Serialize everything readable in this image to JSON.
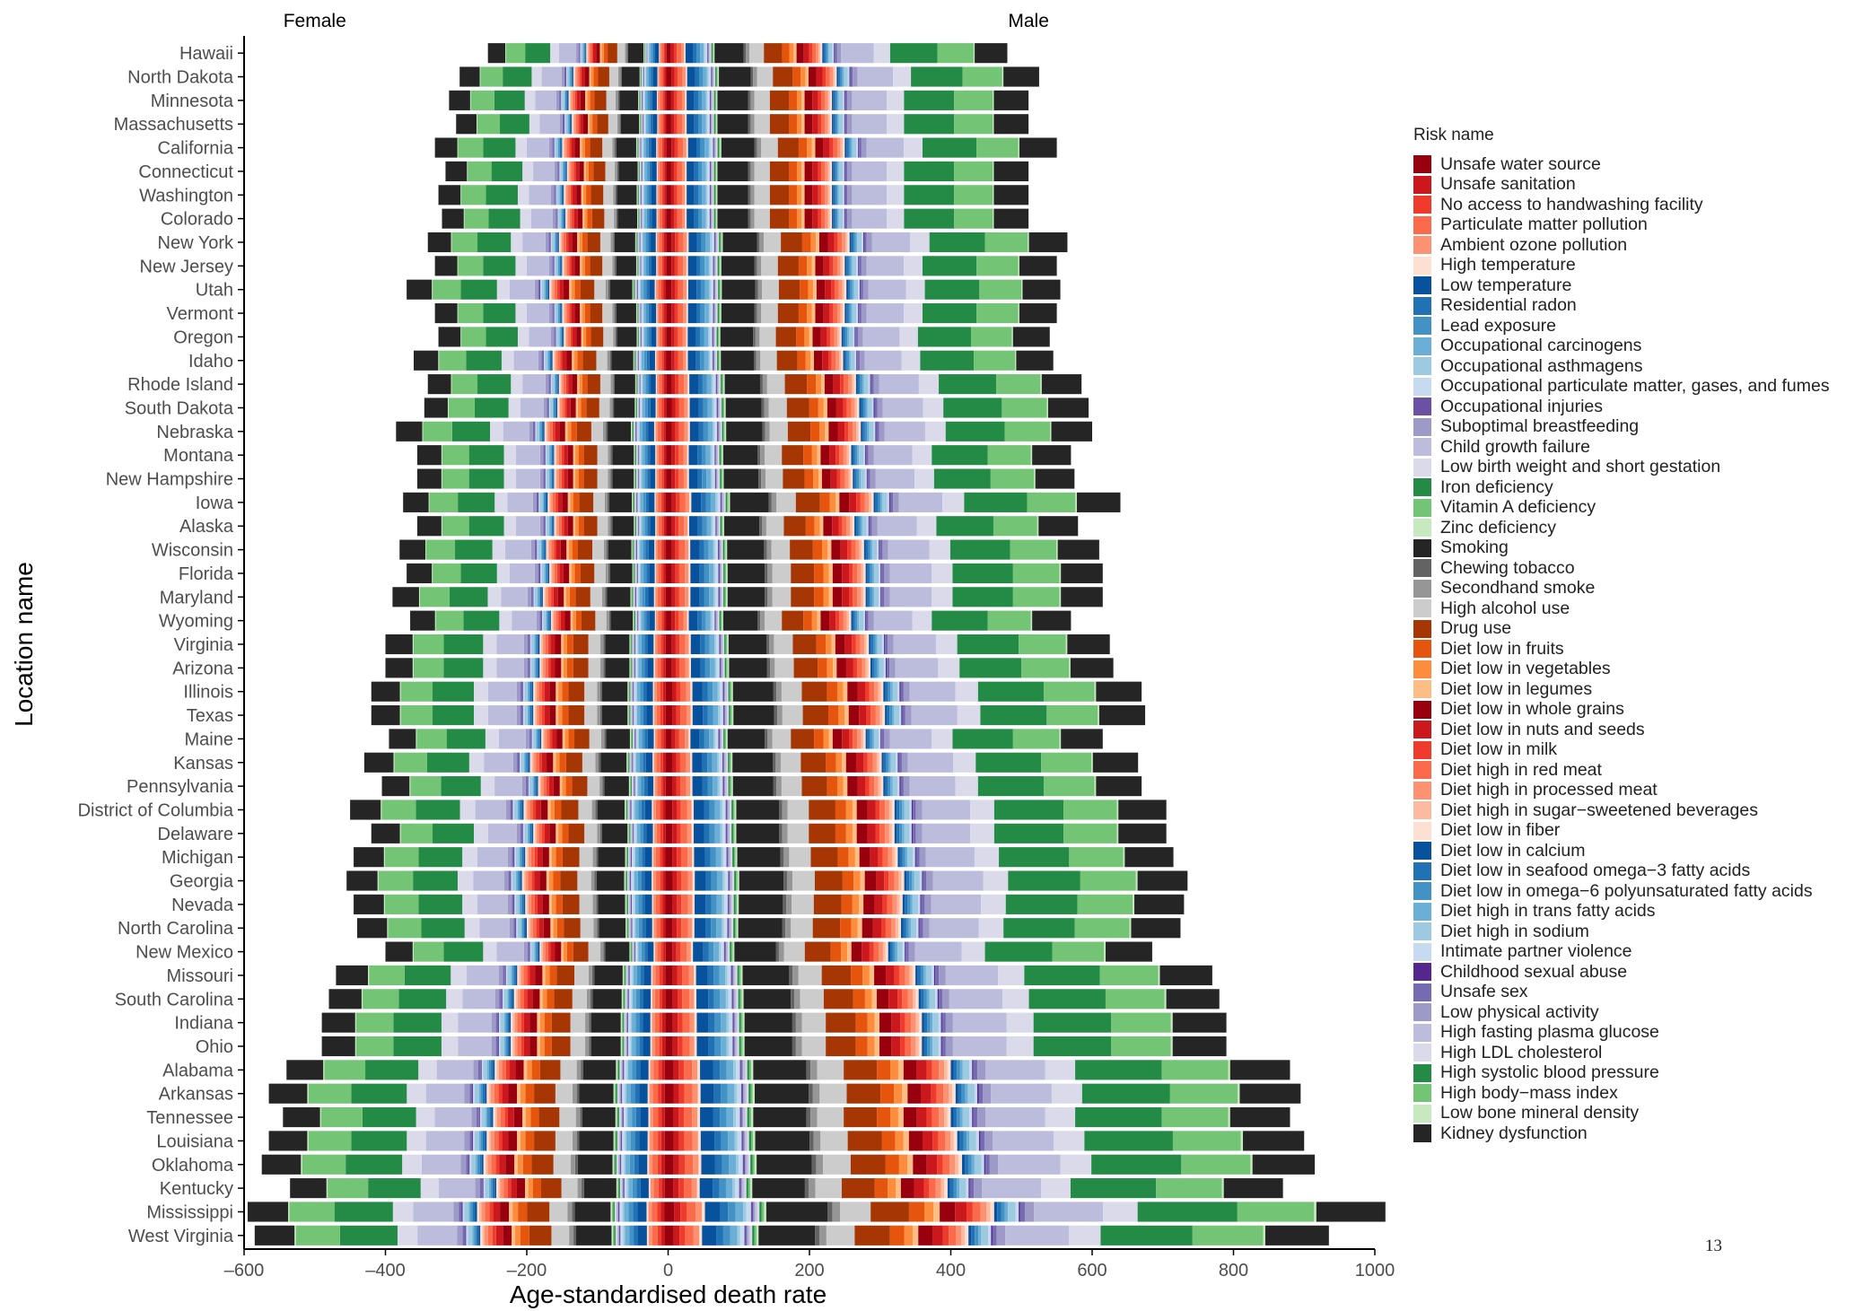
{
  "chart_data": {
    "type": "bar",
    "orientation": "horizontal",
    "stacked": true,
    "diverging": true,
    "panels": [
      "Female",
      "Male"
    ],
    "xlabel": "Age-standardised death rate",
    "ylabel": "Location name",
    "xlim": [
      -600,
      1000
    ],
    "xticks": [
      -600,
      -400,
      -200,
      0,
      200,
      400,
      600,
      800,
      1000
    ],
    "grid": false,
    "legend_title": "Risk name",
    "legend_position": "right",
    "categories": [
      "Hawaii",
      "North Dakota",
      "Minnesota",
      "Massachusetts",
      "California",
      "Connecticut",
      "Washington",
      "Colorado",
      "New York",
      "New Jersey",
      "Utah",
      "Vermont",
      "Oregon",
      "Idaho",
      "Rhode Island",
      "South Dakota",
      "Nebraska",
      "Montana",
      "New Hampshire",
      "Iowa",
      "Alaska",
      "Wisconsin",
      "Florida",
      "Maryland",
      "Wyoming",
      "Virginia",
      "Arizona",
      "Illinois",
      "Texas",
      "Maine",
      "Kansas",
      "Pennsylvania",
      "District of Columbia",
      "Delaware",
      "Michigan",
      "Georgia",
      "Nevada",
      "North Carolina",
      "New Mexico",
      "Missouri",
      "South Carolina",
      "Indiana",
      "Ohio",
      "Alabama",
      "Arkansas",
      "Tennessee",
      "Louisiana",
      "Oklahoma",
      "Kentucky",
      "Mississippi",
      "West Virginia"
    ],
    "female_totals": [
      -255,
      -295,
      -310,
      -300,
      -330,
      -315,
      -325,
      -320,
      -340,
      -330,
      -370,
      -330,
      -325,
      -360,
      -340,
      -345,
      -385,
      -355,
      -355,
      -375,
      -355,
      -380,
      -370,
      -390,
      -365,
      -400,
      -400,
      -420,
      -420,
      -395,
      -430,
      -405,
      -450,
      -420,
      -445,
      -455,
      -445,
      -440,
      -400,
      -470,
      -480,
      -490,
      -490,
      -540,
      -565,
      -545,
      -565,
      -575,
      -535,
      -595,
      -585
    ],
    "male_totals": [
      480,
      525,
      510,
      510,
      550,
      510,
      510,
      510,
      565,
      550,
      555,
      550,
      540,
      545,
      585,
      595,
      600,
      570,
      575,
      640,
      580,
      610,
      615,
      615,
      570,
      625,
      630,
      670,
      675,
      615,
      665,
      670,
      705,
      705,
      715,
      735,
      730,
      725,
      685,
      770,
      780,
      790,
      790,
      880,
      895,
      880,
      900,
      915,
      870,
      1015,
      935
    ],
    "series": [
      {
        "name": "Unsafe water source",
        "color": "#99000d",
        "share": 0.008
      },
      {
        "name": "Unsafe sanitation",
        "color": "#cb181d",
        "share": 0.008
      },
      {
        "name": "No access to handwashing facility",
        "color": "#ef3b2c",
        "share": 0.008
      },
      {
        "name": "Particulate matter pollution",
        "color": "#fb6a4a",
        "share": 0.012
      },
      {
        "name": "Ambient ozone pollution",
        "color": "#fc9272",
        "share": 0.008
      },
      {
        "name": "High temperature",
        "color": "#fee0d2",
        "share": 0.004
      },
      {
        "name": "Low temperature",
        "color": "#08519c",
        "share": 0.02
      },
      {
        "name": "Residential radon",
        "color": "#2171b5",
        "share": 0.01
      },
      {
        "name": "Lead exposure",
        "color": "#4292c6",
        "share": 0.01
      },
      {
        "name": "Occupational carcinogens",
        "color": "#6baed6",
        "share": 0.01
      },
      {
        "name": "Occupational asthmagens",
        "color": "#9ecae1",
        "share": 0.004
      },
      {
        "name": "Occupational particulate matter, gases, and fumes",
        "color": "#c6dbef",
        "share": 0.006
      },
      {
        "name": "Occupational injuries",
        "color": "#6a51a3",
        "share": 0.003
      },
      {
        "name": "Suboptimal breastfeeding",
        "color": "#9e9ac8",
        "share": 0.002
      },
      {
        "name": "Child growth failure",
        "color": "#bcbddc",
        "share": 0.003
      },
      {
        "name": "Low birth weight and short gestation",
        "color": "#dadaeb",
        "share": 0.003
      },
      {
        "name": "Iron deficiency",
        "color": "#238b45",
        "share": 0.003
      },
      {
        "name": "Vitamin A deficiency",
        "color": "#74c476",
        "share": 0.003
      },
      {
        "name": "Zinc deficiency",
        "color": "#c7e9c0",
        "share": 0.003
      },
      {
        "name": "Smoking",
        "color": "#252525",
        "share": 0.08
      },
      {
        "name": "Chewing tobacco",
        "color": "#636363",
        "share": 0.006
      },
      {
        "name": "Secondhand smoke",
        "color": "#969696",
        "share": 0.01
      },
      {
        "name": "High alcohol use",
        "color": "#cccccc",
        "share": 0.04
      },
      {
        "name": "Drug use",
        "color": "#a63603",
        "share": 0.05
      },
      {
        "name": "Diet low in fruits",
        "color": "#e6550d",
        "share": 0.02
      },
      {
        "name": "Diet low in vegetables",
        "color": "#fd8d3c",
        "share": 0.012
      },
      {
        "name": "Diet low in legumes",
        "color": "#fdbe85",
        "share": 0.008
      },
      {
        "name": "Diet low in whole grains",
        "color": "#99000d",
        "share": 0.02
      },
      {
        "name": "Diet low in nuts and seeds",
        "color": "#cb181d",
        "share": 0.015
      },
      {
        "name": "Diet low in milk",
        "color": "#ef3b2c",
        "share": 0.008
      },
      {
        "name": "Diet high in red meat",
        "color": "#fb6a4a",
        "share": 0.01
      },
      {
        "name": "Diet high in processed meat",
        "color": "#fc9272",
        "share": 0.008
      },
      {
        "name": "Diet high in sugar−sweetened beverages",
        "color": "#fcbba1",
        "share": 0.005
      },
      {
        "name": "Diet low in fiber",
        "color": "#fee0d2",
        "share": 0.005
      },
      {
        "name": "Diet low in calcium",
        "color": "#08519c",
        "share": 0.004
      },
      {
        "name": "Diet low in seafood omega−3 fatty acids",
        "color": "#2171b5",
        "share": 0.005
      },
      {
        "name": "Diet low in omega−6 polyunsaturated fatty acids",
        "color": "#4292c6",
        "share": 0.005
      },
      {
        "name": "Diet high in trans fatty acids",
        "color": "#6baed6",
        "share": 0.004
      },
      {
        "name": "Diet high in sodium",
        "color": "#9ecae1",
        "share": 0.01
      },
      {
        "name": "Intimate partner violence",
        "color": "#c6dbef",
        "share": 0.004
      },
      {
        "name": "Childhood sexual abuse",
        "color": "#54278f",
        "share": 0.002
      },
      {
        "name": "Unsafe sex",
        "color": "#756bb1",
        "share": 0.006
      },
      {
        "name": "Low physical activity",
        "color": "#9e9ac8",
        "share": 0.012
      },
      {
        "name": "High fasting plasma glucose",
        "color": "#bcbddc",
        "share": 0.09
      },
      {
        "name": "High LDL cholesterol",
        "color": "#dadaeb",
        "share": 0.045
      },
      {
        "name": "High systolic blood pressure",
        "color": "#238b45",
        "share": 0.13
      },
      {
        "name": "High body−mass index",
        "color": "#74c476",
        "share": 0.1
      },
      {
        "name": "Low bone mineral density",
        "color": "#c7e9c0",
        "share": 0.003
      },
      {
        "name": "Kidney dysfunction",
        "color": "#252525",
        "share": 0.09
      }
    ]
  },
  "page_number": "13"
}
